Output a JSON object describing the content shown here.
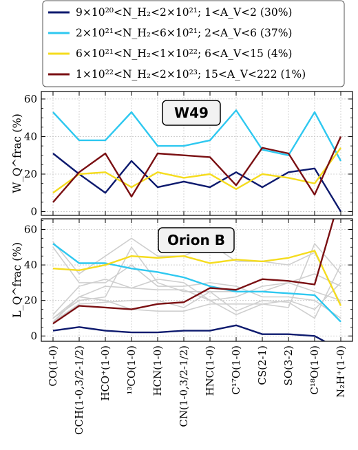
{
  "legend": {
    "entries": [
      {
        "label": "9×10²⁰<N_H₂<2×10²¹; 1<A_V<2 (30%)",
        "color": "#0d1a6e"
      },
      {
        "label": "2×10²¹<N_H₂<6×10²¹; 2<A_V<6 (37%)",
        "color": "#2ec8f0"
      },
      {
        "label": "6×10²¹<N_H₂<1×10²²; 6<A_V<15 (4%)",
        "color": "#f5dc1e"
      },
      {
        "label": "1×10²²<N_H₂<2×10²³; 15<A_V<222 (1%)",
        "color": "#7a0f12"
      }
    ]
  },
  "chart_data": [
    {
      "type": "line",
      "title": "W49",
      "ylabel": "W_Q^frac (%)",
      "ylim": [
        -2,
        64
      ],
      "yticks": [
        0,
        20,
        40,
        60
      ],
      "grid": true,
      "categories": [
        "CO(1-0)",
        "CCH(1-0,3/2-1/2)",
        "HCO⁺(1-0)",
        "¹³CO(1-0)",
        "HCN(1-0)",
        "CN(1-0,3/2-1/2)",
        "HNC(1-0)",
        "C¹⁷O(1-0)",
        "CS(2-1)",
        "SO(3-2)",
        "C¹⁸O(1-0)",
        "N₂H⁺(1-0)"
      ],
      "series": [
        {
          "name": "9×10²⁰<N_H₂<2×10²¹; 1<A_V<2 (30%)",
          "color": "#0d1a6e",
          "values": [
            31,
            20,
            10,
            27,
            13,
            16,
            13,
            21,
            13,
            21,
            23,
            0
          ]
        },
        {
          "name": "2×10²¹<N_H₂<6×10²¹; 2<A_V<6 (37%)",
          "color": "#2ec8f0",
          "values": [
            53,
            38,
            38,
            53,
            35,
            35,
            38,
            54,
            33,
            30,
            53,
            27
          ]
        },
        {
          "name": "6×10²¹<N_H₂<1×10²²; 6<A_V<15 (4%)",
          "color": "#f5dc1e",
          "values": [
            10,
            20,
            21,
            13,
            21,
            18,
            20,
            12,
            20,
            18,
            15,
            34
          ]
        },
        {
          "name": "1×10²²<N_H₂<2×10²³; 15<A_V<222 (1%)",
          "color": "#7a0f12",
          "values": [
            5,
            21,
            31,
            8,
            31,
            30,
            29,
            14,
            34,
            31,
            9,
            40
          ]
        }
      ]
    },
    {
      "type": "line",
      "title": "Orion B",
      "ylabel": "L_Q^frac (%)",
      "ylim": [
        -3,
        66
      ],
      "yticks": [
        0,
        20,
        40,
        60
      ],
      "grid": true,
      "categories": [
        "CO(1-0)",
        "CCH(1-0,3/2-1/2)",
        "HCO⁺(1-0)",
        "¹³CO(1-0)",
        "HCN(1-0)",
        "CN(1-0,3/2-1/2)",
        "HNC(1-0)",
        "C¹⁷O(1-0)",
        "CS(2-1)",
        "SO(3-2)",
        "C¹⁸O(1-0)",
        "N₂H⁺(1-0)"
      ],
      "background_series_color": "#cfcfcf",
      "background_series": [
        [
          53,
          35,
          45,
          55,
          45,
          45,
          52,
          42,
          42,
          40,
          47,
          18
        ],
        [
          50,
          30,
          30,
          40,
          28,
          28,
          30,
          28,
          22,
          22,
          20,
          10
        ],
        [
          10,
          22,
          28,
          27,
          26,
          26,
          20,
          22,
          28,
          30,
          35,
          28
        ],
        [
          12,
          28,
          32,
          27,
          32,
          30,
          20,
          12,
          18,
          20,
          15,
          30
        ],
        [
          8,
          18,
          19,
          20,
          20,
          16,
          25,
          14,
          20,
          19,
          10,
          40
        ],
        [
          8,
          22,
          20,
          15,
          14,
          14,
          18,
          18,
          18,
          16,
          52,
          35
        ],
        [
          10,
          20,
          22,
          50,
          30,
          25,
          25,
          25,
          25,
          30,
          25,
          20
        ]
      ],
      "series": [
        {
          "name": "9×10²⁰<N_H₂<2×10²¹; 1<A_V<2 (30%)",
          "color": "#0d1a6e",
          "values": [
            3,
            5,
            3,
            2,
            2,
            3,
            3,
            6,
            1,
            1,
            0,
            -8
          ]
        },
        {
          "name": "2×10²¹<N_H₂<6×10²¹; 2<A_V<6 (37%)",
          "color": "#2ec8f0",
          "values": [
            52,
            41,
            41,
            38,
            36,
            33,
            28,
            25,
            25,
            24,
            23,
            8
          ]
        },
        {
          "name": "6×10²¹<N_H₂<1×10²²; 6<A_V<15 (4%)",
          "color": "#f5dc1e",
          "values": [
            38,
            37,
            40,
            45,
            44,
            45,
            41,
            43,
            42,
            44,
            48,
            17
          ]
        },
        {
          "name": "1×10²²<N_H₂<2×10²³; 15<A_V<222 (1%)",
          "color": "#7a0f12",
          "values": [
            7,
            17,
            16,
            15,
            18,
            19,
            27,
            26,
            32,
            31,
            29,
            80
          ]
        }
      ]
    }
  ]
}
